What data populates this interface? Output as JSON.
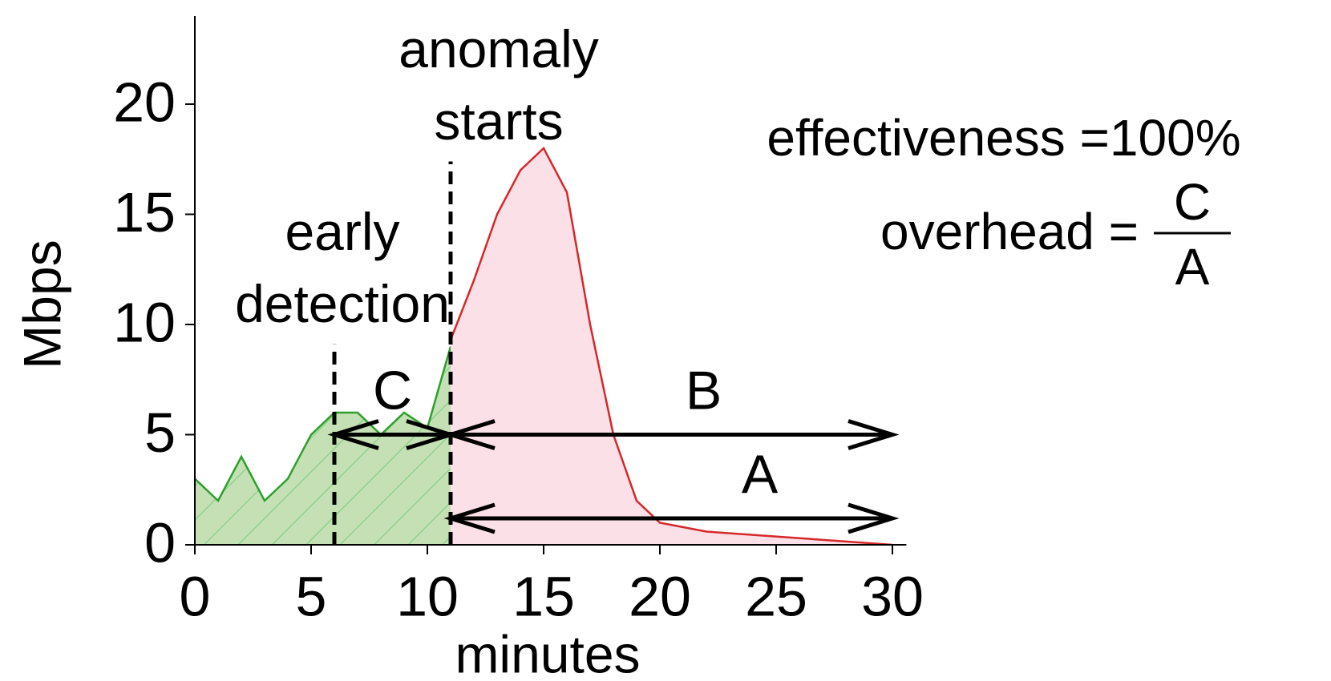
{
  "chart_data": {
    "type": "area",
    "xlabel": "minutes",
    "ylabel": "Mbps",
    "xlim": [
      0,
      30.6
    ],
    "ylim": [
      0,
      24
    ],
    "xticks": [
      0,
      5,
      10,
      15,
      20,
      25,
      30
    ],
    "yticks": [
      0,
      5,
      10,
      15,
      20
    ],
    "series": [
      {
        "color": "#2ca02c",
        "fill": "#c5e0b4",
        "hatch": "#8fd18f",
        "x": [
          0,
          1,
          2,
          3,
          4,
          5,
          6,
          7,
          8,
          9,
          10,
          11
        ],
        "values": [
          3,
          2,
          4,
          2,
          3,
          5,
          6,
          6,
          5,
          6,
          5.3,
          9
        ]
      },
      {
        "color": "#d62728",
        "fill": "#fce0e8",
        "x": [
          11,
          12,
          13,
          14,
          15,
          16,
          17,
          18,
          19,
          20,
          22,
          30
        ],
        "values": [
          9.3,
          12,
          15,
          17,
          18,
          16,
          10,
          5,
          2,
          1,
          0.6,
          0
        ]
      }
    ],
    "vlines": [
      {
        "x": 6,
        "ymax": 9.1,
        "label": [
          "early",
          "detection"
        ]
      },
      {
        "x": 11,
        "ymax": 17.4,
        "label": [
          "anomaly",
          "starts"
        ]
      }
    ],
    "arrows": [
      {
        "label": "C",
        "x1": 6,
        "x2": 11,
        "y": 5
      },
      {
        "label": "B",
        "x1": 11,
        "x2": 30,
        "y": 5
      },
      {
        "label": "A",
        "x1": 11,
        "x2": 30,
        "y": 1.2
      }
    ],
    "effectiveness": "effectiveness =100%",
    "overhead": {
      "text": "overhead =",
      "numerator": "C",
      "denominator": "A"
    }
  }
}
